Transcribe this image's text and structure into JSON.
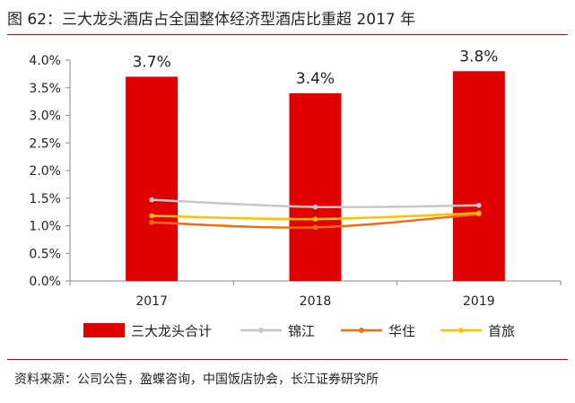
{
  "figure_title": "图 62：三大龙头酒店占全国整体经济型酒店比重超 2017 年",
  "source": "资料来源：公司公告，盈蝶咨询，中国饭店协会，长江证券研究所",
  "colors": {
    "bar": "#e00000",
    "jinjiang": "#c8c8c8",
    "huazhu": "#f26b0c",
    "shoulv": "#ffc000",
    "rule": "#8c1c1c"
  },
  "chart_data": {
    "type": "bar",
    "categories": [
      "2017",
      "2018",
      "2019"
    ],
    "ylim": [
      0,
      0.04
    ],
    "yticks": [
      0,
      0.005,
      0.01,
      0.015,
      0.02,
      0.025,
      0.03,
      0.035,
      0.04
    ],
    "ytick_labels": [
      "0.0%",
      "0.5%",
      "1.0%",
      "1.5%",
      "2.0%",
      "2.5%",
      "3.0%",
      "3.5%",
      "4.0%"
    ],
    "bar_series": {
      "name": "三大龙头合计",
      "values": [
        0.037,
        0.034,
        0.038
      ],
      "labels": [
        "3.7%",
        "3.4%",
        "3.8%"
      ]
    },
    "line_series": [
      {
        "name": "锦江",
        "values": [
          0.0147,
          0.0134,
          0.0137
        ],
        "color_key": "jinjiang"
      },
      {
        "name": "华住",
        "values": [
          0.0106,
          0.0097,
          0.0121
        ],
        "color_key": "huazhu"
      },
      {
        "name": "首旅",
        "values": [
          0.0118,
          0.0112,
          0.0123
        ],
        "color_key": "shoulv"
      }
    ],
    "legend_position": "bottom",
    "grid": false
  }
}
